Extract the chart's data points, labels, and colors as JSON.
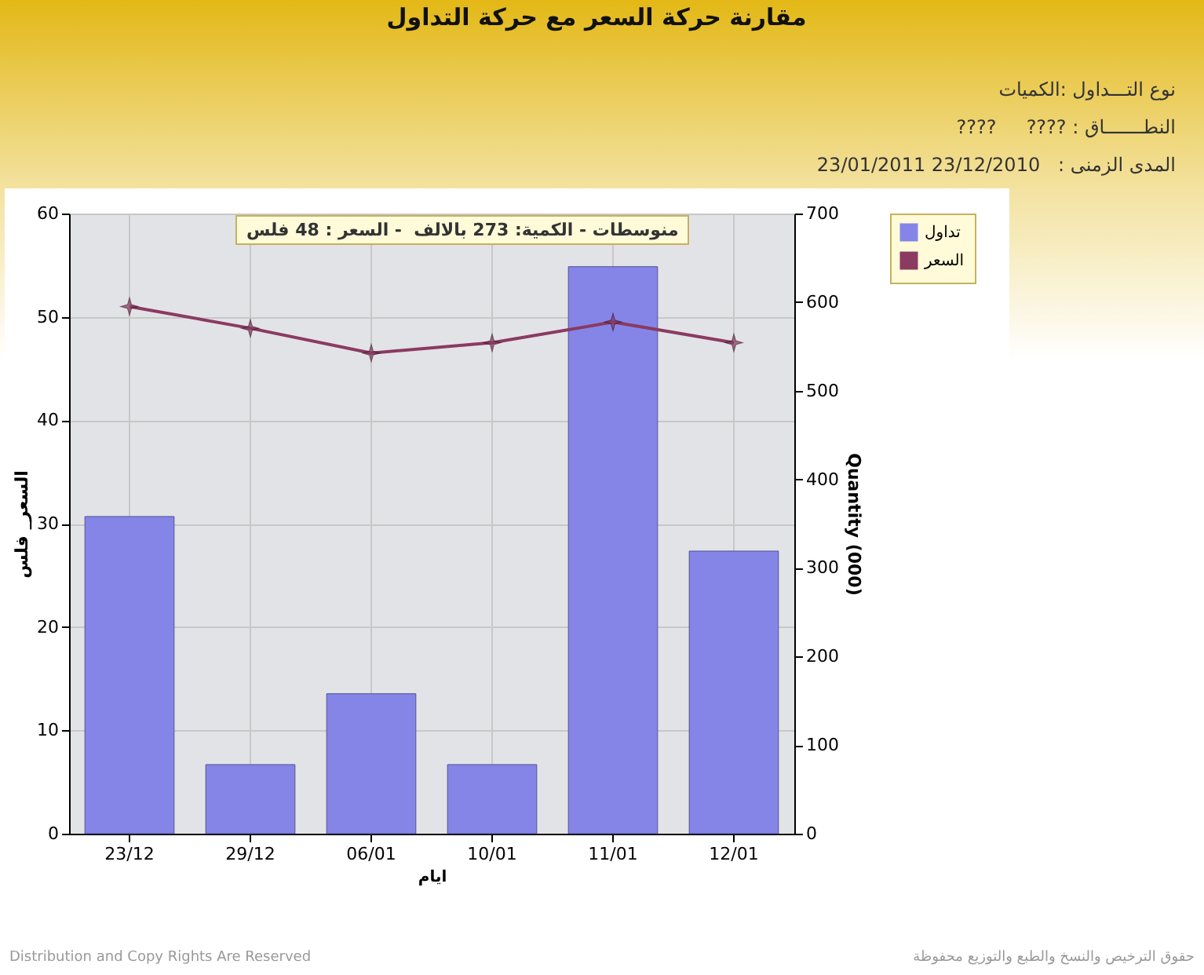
{
  "chart_data": {
    "type": "bar",
    "title": "مقارنة حركة السعر مع حركة التداول",
    "subtitle": "نوع التـــداول :الكميات",
    "annotations": [
      "النطـــــــاق : ????     ????",
      "المدى الزمنى :   23/12/2010 23/01/2011",
      "منوسطات - الكمية: 273 بالالف  - السعر : 48 فلس",
      "حقوق الترخيص والنسخ والطبع والتوزيع محفوظة",
      "Distribution and Copy Rights Are Reserved"
    ],
    "xlabel": "ايام",
    "ylabel": "السعر_ فلس",
    "y2label": "Quantity (000)",
    "categories": [
      "23/12",
      "29/12",
      "06/01",
      "10/01",
      "11/01",
      "12/01"
    ],
    "series": [
      {
        "name": "تداول",
        "axis": "y2",
        "color": "#8585e8",
        "values": [
          358,
          78,
          158,
          78,
          640,
          319
        ]
      },
      {
        "name": "السعر",
        "type": "line",
        "color": "#8b3a62",
        "marker": "star",
        "values": [
          51.0,
          48.9,
          46.5,
          47.5,
          49.5,
          47.5
        ]
      }
    ],
    "ylim": [
      0,
      60
    ],
    "yticks": [
      0,
      10,
      20,
      30,
      40,
      50,
      60
    ],
    "y2lim": [
      0,
      700
    ],
    "y2ticks": [
      0,
      100,
      200,
      300,
      400,
      500,
      600,
      700
    ],
    "grid": true,
    "legend": "top right"
  }
}
